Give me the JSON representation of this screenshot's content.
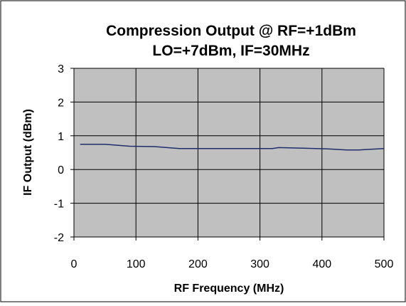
{
  "chart_data": {
    "type": "line",
    "title": [
      "Compression Output @ RF=+1dBm",
      "LO=+7dBm, IF=30MHz"
    ],
    "xlabel": "RF Frequency  (MHz)",
    "ylabel": "IF Output (dBm)",
    "xlim": [
      0,
      500
    ],
    "ylim": [
      -2,
      3
    ],
    "xticks": [
      0,
      100,
      200,
      300,
      400,
      500
    ],
    "yticks": [
      -2,
      -1,
      0,
      1,
      2,
      3
    ],
    "xtick_labels": [
      "0",
      "100",
      "200",
      "300",
      "400",
      "500"
    ],
    "ytick_labels": [
      "-2",
      "-1",
      "0",
      "1",
      "2",
      "3"
    ],
    "grid": true,
    "legend": "none",
    "colors": {
      "plot_background": "#c0c0c0",
      "gridline": "#000000",
      "series": "#1f2d6b"
    },
    "series": [
      {
        "name": "",
        "x": [
          10,
          50,
          90,
          130,
          170,
          210,
          250,
          290,
          320,
          330,
          370,
          410,
          440,
          460,
          500
        ],
        "y": [
          0.75,
          0.75,
          0.69,
          0.68,
          0.62,
          0.62,
          0.62,
          0.62,
          0.62,
          0.65,
          0.63,
          0.61,
          0.58,
          0.58,
          0.62
        ]
      }
    ]
  }
}
